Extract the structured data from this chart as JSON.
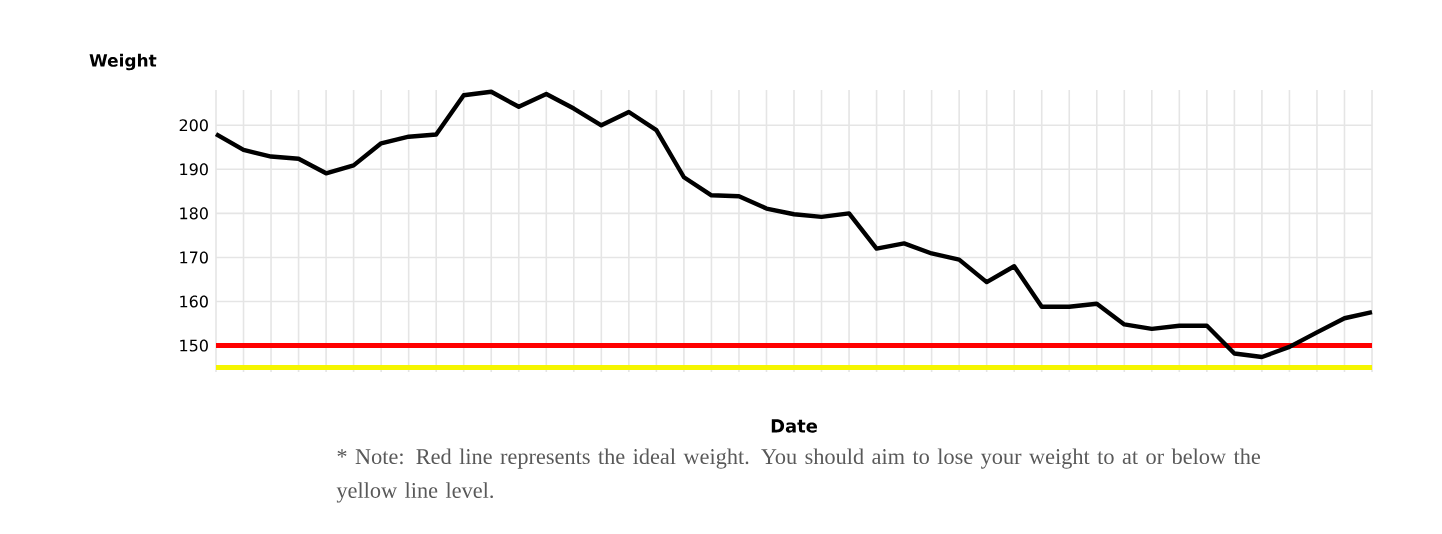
{
  "chart_data": {
    "type": "line",
    "title": "Weight",
    "xlabel": "Date",
    "annotations": [
      "* Note: Red line represents the ideal weight. You should aim to lose your weight to at or below the yellow line level."
    ],
    "categories": [
      null,
      null,
      null,
      null,
      null,
      null,
      null,
      null,
      null,
      null,
      null,
      null,
      null,
      null,
      null,
      null,
      null,
      null,
      null,
      null,
      null,
      null,
      null,
      null,
      null,
      null,
      null,
      null,
      null,
      null,
      null,
      null,
      null,
      null,
      null,
      null,
      null,
      null,
      null,
      null,
      null,
      null,
      null
    ],
    "series": [
      {
        "color": "#000000",
        "values": [
          198.0,
          194.4,
          192.9,
          192.4,
          189.1,
          190.9,
          195.9,
          197.4,
          197.9,
          206.8,
          207.6,
          204.2,
          207.1,
          203.8,
          200.0,
          203.0,
          198.9,
          188.2,
          184.1,
          183.9,
          181.1,
          179.8,
          179.2,
          180.0,
          172.0,
          173.2,
          170.9,
          169.5,
          164.4,
          168.0,
          158.8,
          158.8,
          159.5,
          154.8,
          153.8,
          154.5,
          154.5,
          148.2,
          147.4,
          149.7,
          153.0,
          156.2,
          157.6
        ]
      }
    ],
    "ylim": [
      144,
      208
    ],
    "yticks": [
      150,
      160,
      170,
      180,
      190,
      200
    ],
    "grid": true,
    "ref_lines": [
      {
        "axis": "y",
        "value": 150,
        "color": "#ff0000"
      },
      {
        "axis": "y",
        "value": 145,
        "color": "#f5f500"
      }
    ]
  }
}
